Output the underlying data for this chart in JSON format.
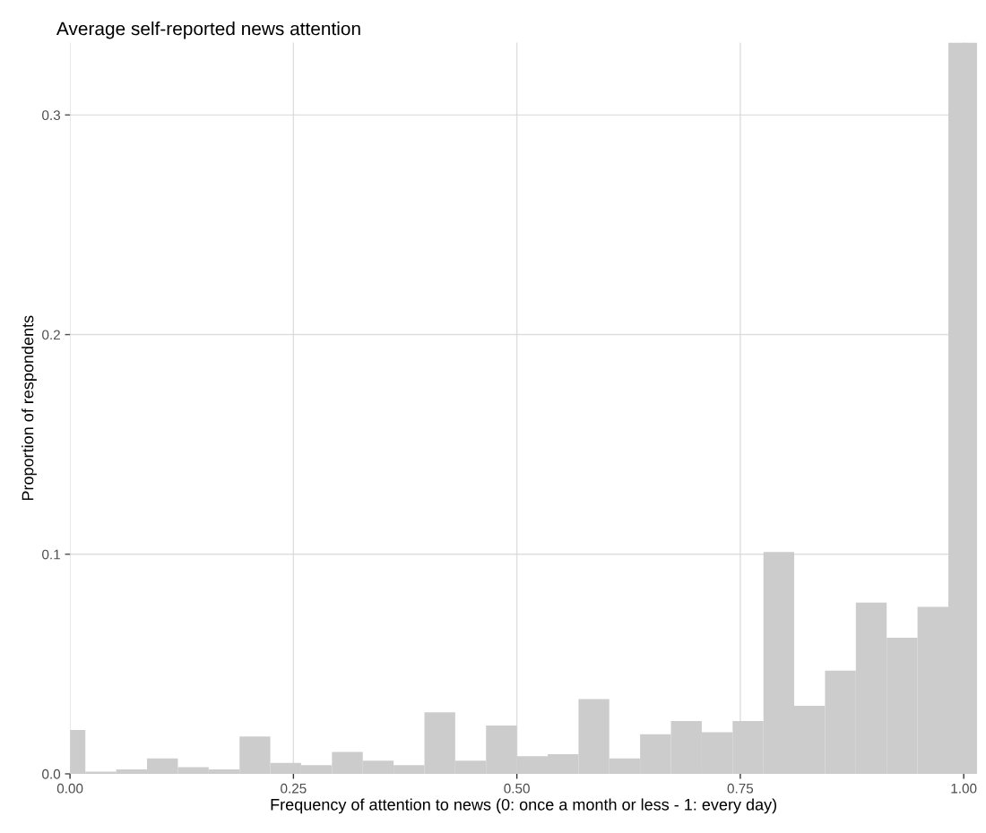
{
  "chart_data": {
    "type": "histogram",
    "title": "Average self-reported news attention",
    "xlabel": "Frequency of attention to news (0: once a month or less - 1: every day)",
    "ylabel": "Proportion of respondents",
    "bins": [
      0,
      0.0172,
      0.0517,
      0.0862,
      0.1207,
      0.1552,
      0.1897,
      0.2241,
      0.2586,
      0.2931,
      0.3276,
      0.3621,
      0.3966,
      0.431,
      0.4655,
      0.5,
      0.5345,
      0.569,
      0.6034,
      0.6379,
      0.6724,
      0.7069,
      0.7414,
      0.7759,
      0.8103,
      0.8448,
      0.8793,
      0.9138,
      0.9483,
      0.9828,
      1.015
    ],
    "values": [
      0.02,
      0.001,
      0.002,
      0.007,
      0.003,
      0.002,
      0.017,
      0.005,
      0.004,
      0.01,
      0.006,
      0.004,
      0.028,
      0.006,
      0.022,
      0.008,
      0.009,
      0.034,
      0.007,
      0.018,
      0.024,
      0.019,
      0.024,
      0.101,
      0.031,
      0.047,
      0.078,
      0.062,
      0.076,
      0.333
    ],
    "color": "#cccccc",
    "xlim": [
      0,
      1.015
    ],
    "xticks": [
      {
        "value": 0,
        "label": "0.00"
      },
      {
        "value": 0.25,
        "label": "0.25"
      },
      {
        "value": 0.5,
        "label": "0.50"
      },
      {
        "value": 0.75,
        "label": "0.75"
      },
      {
        "value": 1,
        "label": "1.00"
      }
    ],
    "ylim": [
      0,
      0.333
    ],
    "yticks": [
      {
        "value": 0,
        "label": "0.0"
      },
      0.1,
      0.2,
      0.3
    ],
    "grid": true
  }
}
